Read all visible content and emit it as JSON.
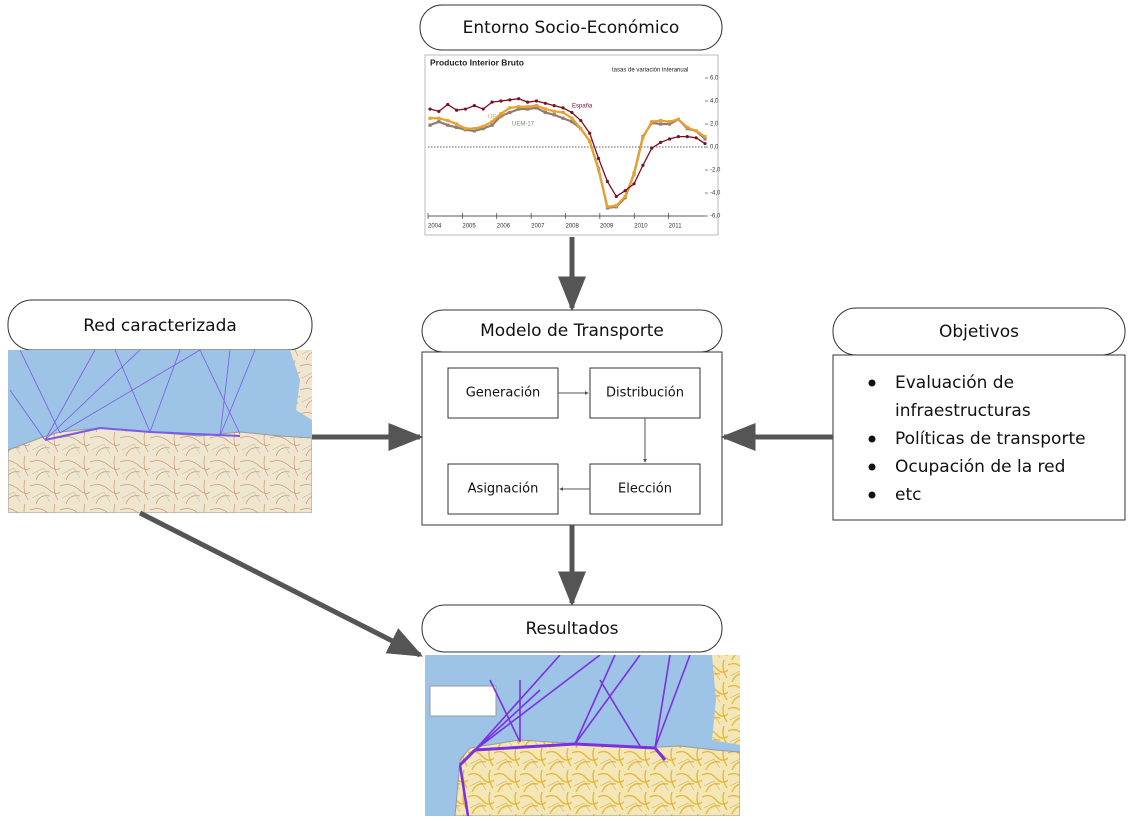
{
  "boxes": {
    "entorno": "Entorno Socio-Económico",
    "red": "Red caracterizada",
    "modelo": "Modelo de Transporte",
    "objetivos": "Objetivos",
    "resultados": "Resultados"
  },
  "steps": {
    "generacion": "Generación",
    "distribucion": "Distribución",
    "eleccion": "Elección",
    "asignacion": "Asignación"
  },
  "objectives": [
    [
      "Evaluación de",
      "infraestructuras"
    ],
    [
      "Políticas de transporte"
    ],
    [
      "Ocupación de la red"
    ],
    [
      "etc"
    ]
  ],
  "pib_chart": {
    "title": "Producto Interior Bruto",
    "subtitle": "tasas de variación interanual",
    "ylim": [
      -6,
      6
    ],
    "yticks": [
      {
        "value": 6,
        "label": "6,0"
      },
      {
        "value": 4,
        "label": "4,0"
      },
      {
        "value": 2,
        "label": "2,0"
      },
      {
        "value": 0,
        "label": "0,0"
      },
      {
        "value": -2,
        "label": "-2,0"
      },
      {
        "value": -4,
        "label": "-4,0"
      },
      {
        "value": -6,
        "label": "-6,0"
      }
    ],
    "years": [
      "2004",
      "2005",
      "2006",
      "2007",
      "2008",
      "2009",
      "2010",
      "2011"
    ],
    "series": [
      {
        "name": "España",
        "color": "#7b1020",
        "values": [
          3.3,
          3.1,
          3.7,
          3.2,
          3.3,
          3.6,
          3.3,
          3.9,
          4.0,
          4.1,
          4.2,
          3.9,
          4.0,
          3.8,
          3.6,
          3.4,
          3.0,
          2.3,
          1.2,
          -1.0,
          -3.0,
          -4.3,
          -3.8,
          -3.2,
          -1.6,
          -0.1,
          0.4,
          0.7,
          0.9,
          0.9,
          0.8,
          0.3
        ]
      },
      {
        "name": "UE-27",
        "color": "#e8a030",
        "values": [
          2.5,
          2.5,
          2.3,
          2.0,
          1.6,
          1.6,
          1.8,
          2.2,
          2.9,
          3.4,
          3.5,
          3.5,
          3.6,
          3.3,
          3.1,
          3.0,
          2.5,
          1.6,
          0.5,
          -2.0,
          -5.2,
          -5.1,
          -4.3,
          -2.4,
          0.8,
          2.2,
          2.3,
          2.2,
          2.4,
          1.7,
          1.4,
          0.9
        ]
      },
      {
        "name": "UEM-17",
        "color": "#8a7f70",
        "values": [
          1.9,
          2.2,
          1.9,
          1.7,
          1.5,
          1.4,
          1.6,
          1.9,
          2.7,
          3.0,
          3.3,
          3.3,
          3.4,
          3.0,
          2.8,
          2.5,
          2.2,
          1.6,
          0.5,
          -1.9,
          -5.3,
          -5.2,
          -4.4,
          -2.3,
          0.9,
          2.1,
          2.0,
          2.0,
          2.4,
          1.6,
          1.4,
          0.7
        ]
      }
    ]
  }
}
